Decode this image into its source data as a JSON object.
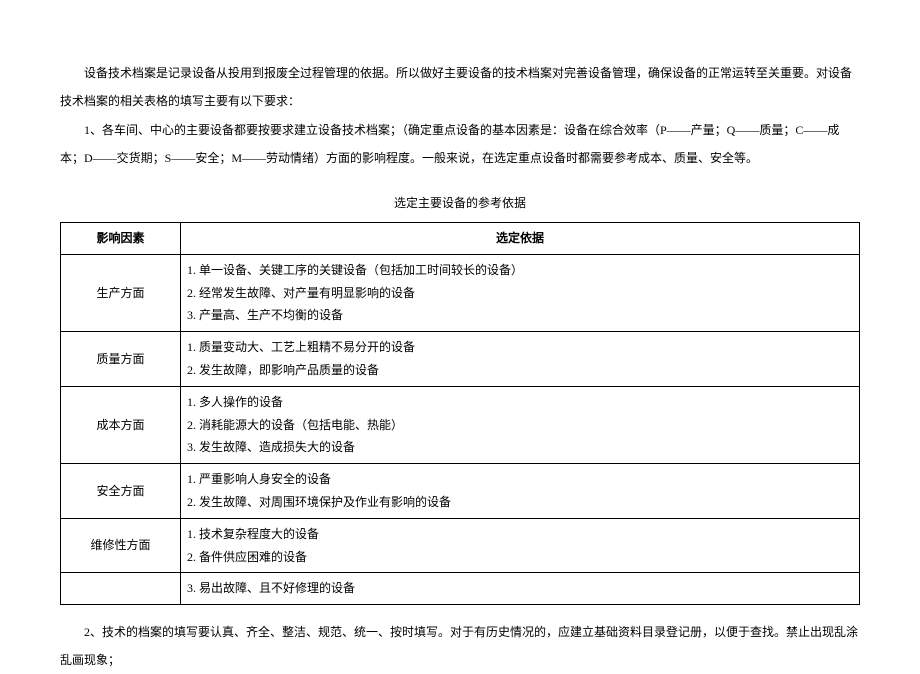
{
  "paragraphs": {
    "intro": "设备技术档案是记录设备从投用到报废全过程管理的依据。所以做好主要设备的技术档案对完善设备管理，确保设备的正常运转至关重要。对设备技术档案的相关表格的填写主要有以下要求：",
    "item1": "1、各车间、中心的主要设备都要按要求建立设备技术档案；（确定重点设备的基本因素是：设备在综合效率（P——产量；Q——质量；C——成本；D——交货期；S——安全；M——劳动情绪）方面的影响程度。一般来说，在选定重点设备时都需要参考成本、质量、安全等。",
    "item2": "2、技术的档案的填写要认真、齐全、整洁、规范、统一、按时填写。对于有历史情况的，应建立基础资料目录登记册，以便于查找。禁止出现乱涂乱画现象；"
  },
  "table": {
    "title": "选定主要设备的参考依据",
    "headers": {
      "col1": "影响因素",
      "col2": "选定依据"
    },
    "rows": [
      {
        "factor": "生产方面",
        "lines": [
          "1. 单一设备、关键工序的关键设备（包括加工时间较长的设备）",
          "2. 经常发生故障、对产量有明显影响的设备",
          "3. 产量高、生产不均衡的设备"
        ]
      },
      {
        "factor": "质量方面",
        "lines": [
          "1. 质量变动大、工艺上粗精不易分开的设备",
          "2. 发生故障，即影响产品质量的设备"
        ]
      },
      {
        "factor": "成本方面",
        "lines": [
          "1. 多人操作的设备",
          "2. 消耗能源大的设备（包括电能、热能）",
          "3. 发生故障、造成损失大的设备"
        ]
      },
      {
        "factor": "安全方面",
        "lines": [
          "1. 严重影响人身安全的设备",
          "2. 发生故障、对周围环境保护及作业有影响的设备"
        ]
      },
      {
        "factor": "维修性方面",
        "lines": [
          "1. 技术复杂程度大的设备",
          "2. 备件供应困难的设备"
        ]
      },
      {
        "factor": "",
        "lines": [
          "3. 易出故障、且不好修理的设备"
        ]
      }
    ]
  }
}
